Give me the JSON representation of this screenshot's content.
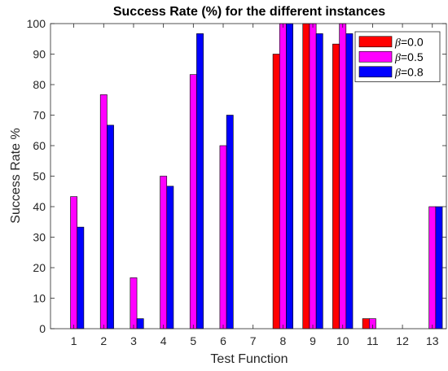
{
  "chart_data": {
    "type": "bar",
    "title": "Success Rate (%) for the different instances",
    "xlabel": "Test Function",
    "ylabel": "Success Rate %",
    "ylim": [
      0,
      100
    ],
    "yticks": [
      "0",
      "10",
      "20",
      "30",
      "40",
      "50",
      "60",
      "70",
      "80",
      "90",
      "100"
    ],
    "categories": [
      "1",
      "2",
      "3",
      "4",
      "5",
      "6",
      "7",
      "8",
      "9",
      "10",
      "11",
      "12",
      "13"
    ],
    "grid": false,
    "legend_position": "top-right",
    "series": [
      {
        "name": "β=0.0",
        "legend_symbol": "β",
        "legend_value": "=0.0",
        "color": "#ff0000",
        "values": [
          0,
          0,
          0,
          0,
          0,
          0,
          0,
          90,
          100,
          93.3,
          3.3,
          0,
          0
        ]
      },
      {
        "name": "β=0.5",
        "legend_symbol": "β",
        "legend_value": "=0.5",
        "color": "#ff00ff",
        "values": [
          43.3,
          76.7,
          16.7,
          50,
          83.3,
          60,
          0,
          100,
          100,
          100,
          3.3,
          0,
          40
        ]
      },
      {
        "name": "β=0.8",
        "legend_symbol": "β",
        "legend_value": "=0.8",
        "color": "#0000ff",
        "values": [
          33.3,
          66.7,
          3.3,
          46.7,
          96.7,
          70,
          0,
          100,
          96.7,
          96.7,
          0,
          0,
          40
        ]
      }
    ]
  }
}
